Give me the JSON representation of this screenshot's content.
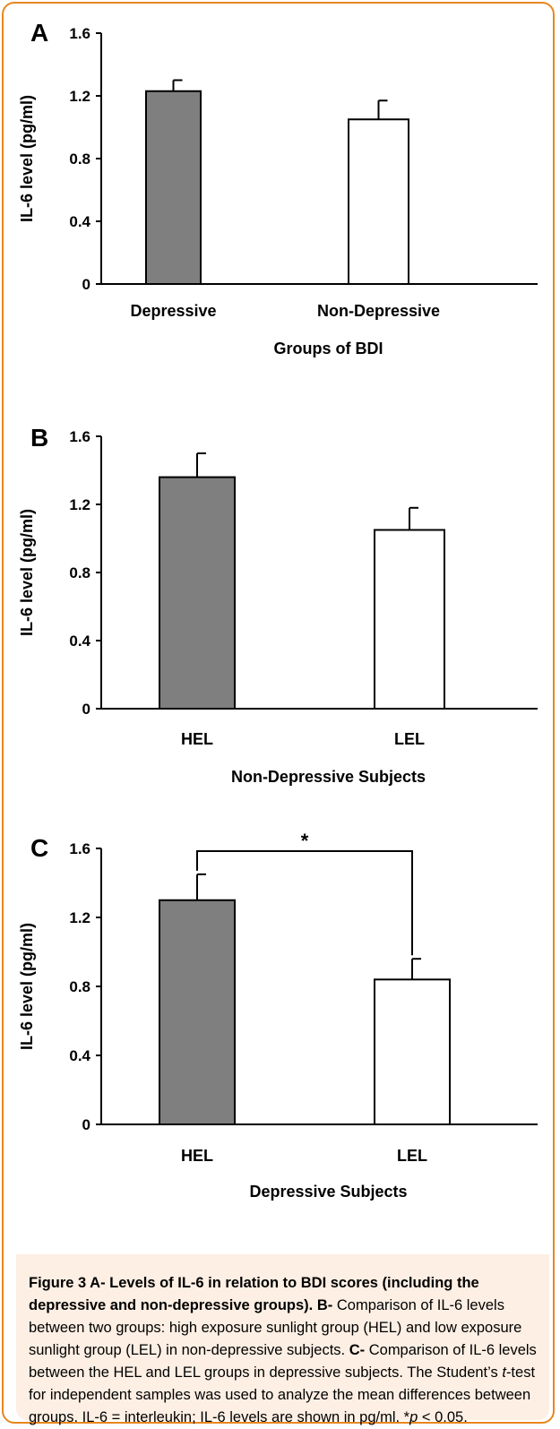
{
  "chart_data": [
    {
      "type": "bar",
      "panel_label": "A",
      "categories": [
        "Depressive",
        "Non-Depressive"
      ],
      "values": [
        1.23,
        1.05
      ],
      "errors": [
        0.07,
        0.12
      ],
      "xlabel": "Groups of BDI",
      "ylabel": "IL-6 level (pg/ml)",
      "ylim": [
        0,
        1.6
      ],
      "yticks": [
        "0",
        "0.4",
        "0.8",
        "1.2",
        "1.6"
      ],
      "bar_colors": [
        "#7f7f7f",
        "#ffffff"
      ],
      "significance": null
    },
    {
      "type": "bar",
      "panel_label": "B",
      "categories": [
        "HEL",
        "LEL"
      ],
      "values": [
        1.36,
        1.05
      ],
      "errors": [
        0.14,
        0.13
      ],
      "xlabel": "Non-Depressive Subjects",
      "ylabel": "IL-6 level (pg/ml)",
      "ylim": [
        0,
        1.6
      ],
      "yticks": [
        "0",
        "0.4",
        "0.8",
        "1.2",
        "1.6"
      ],
      "bar_colors": [
        "#7f7f7f",
        "#ffffff"
      ],
      "significance": null
    },
    {
      "type": "bar",
      "panel_label": "C",
      "categories": [
        "HEL",
        "LEL"
      ],
      "values": [
        1.3,
        0.84
      ],
      "errors": [
        0.15,
        0.12
      ],
      "xlabel": "Depressive Subjects",
      "ylabel": "IL-6 level (pg/ml)",
      "ylim": [
        0,
        1.6
      ],
      "yticks": [
        "0",
        "0.4",
        "0.8",
        "1.2",
        "1.6"
      ],
      "bar_colors": [
        "#7f7f7f",
        "#ffffff"
      ],
      "significance": "*"
    }
  ],
  "caption": {
    "heading": "Figure 3 A- Levels of IL-6 in relation to BDI scores (including the depressive and non-depressive groups).",
    "b_label": "B-",
    "b_text": " Comparison of IL-6 levels between two groups: high exposure sunlight group (HEL) and low exposure sunlight group (LEL) in non-depressive subjects.",
    "c_label": "C-",
    "c_text_1": " Comparison of IL-6 levels between the HEL and LEL groups in depressive subjects. The Student’s ",
    "c_text_t": "t",
    "c_text_2": "-test for independent samples was used to analyze the mean differences between groups. IL-6 = interleukin; IL-6 levels are shown in pg/ml. *",
    "c_text_p": "p",
    "c_text_3": " < 0.05."
  }
}
